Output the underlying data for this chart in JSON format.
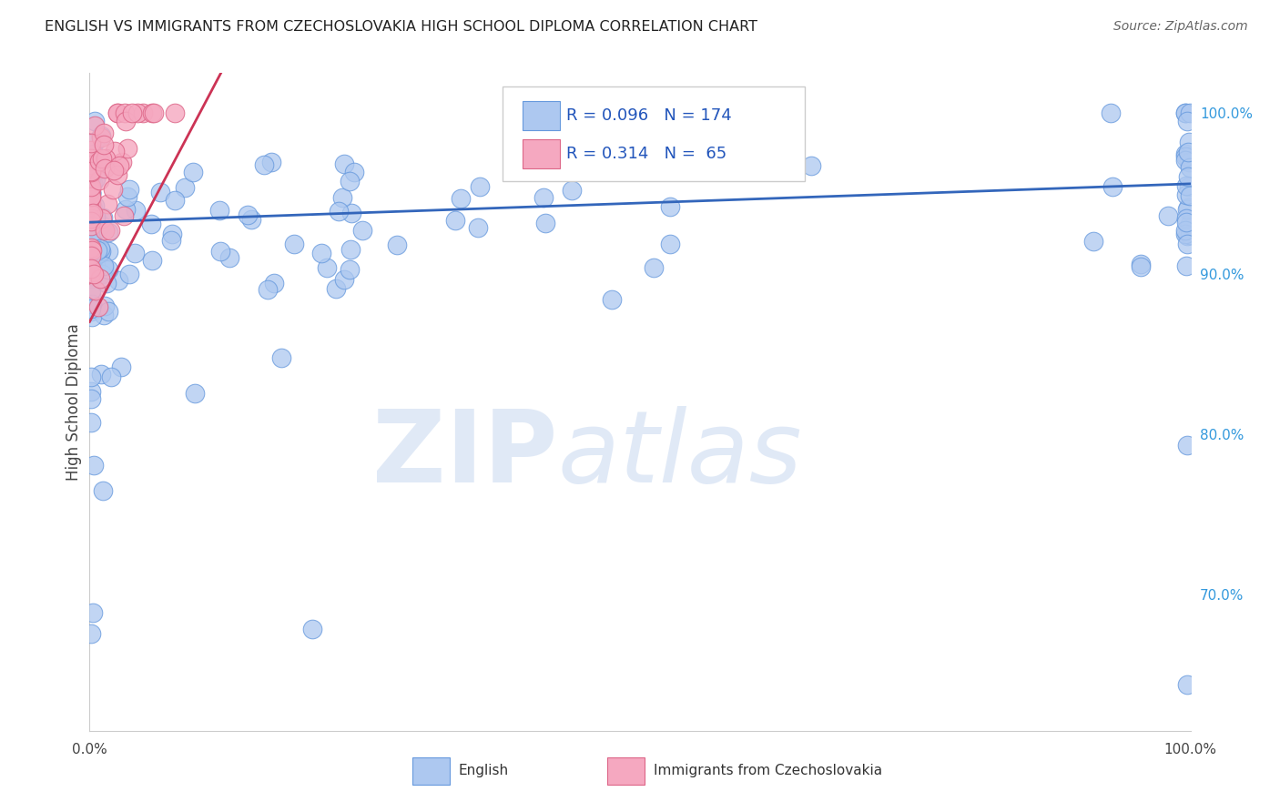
{
  "title": "ENGLISH VS IMMIGRANTS FROM CZECHOSLOVAKIA HIGH SCHOOL DIPLOMA CORRELATION CHART",
  "source": "Source: ZipAtlas.com",
  "ylabel": "High School Diploma",
  "legend_english": "English",
  "legend_czech": "Immigrants from Czechoslovakia",
  "legend_r_english": "R = 0.096",
  "legend_n_english": "N = 174",
  "legend_r_czech": "R = 0.314",
  "legend_n_czech": "N =  65",
  "color_english_fill": "#adc8f0",
  "color_english_edge": "#6699dd",
  "color_czech_fill": "#f5a8c0",
  "color_czech_edge": "#dd6688",
  "color_english_line": "#3366bb",
  "color_czech_line": "#cc3355",
  "background_color": "#ffffff",
  "xlim": [
    0.0,
    1.0
  ],
  "ylim": [
    0.615,
    1.025
  ]
}
